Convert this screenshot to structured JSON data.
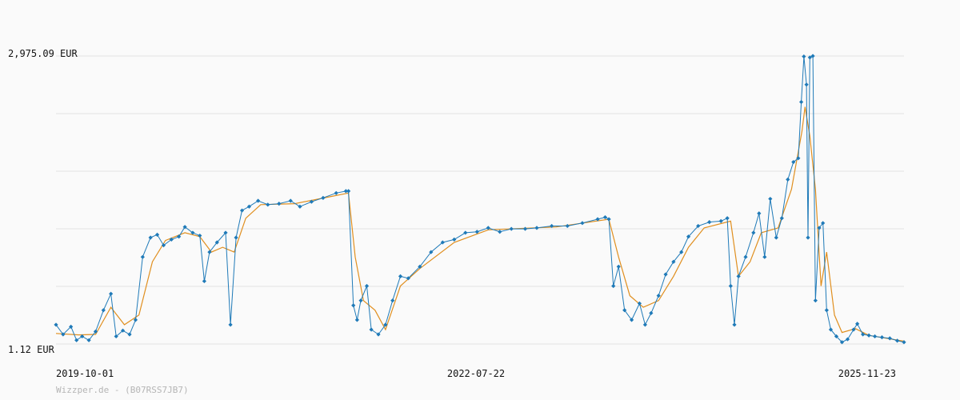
{
  "chart_data": {
    "type": "line",
    "y_unit": "EUR",
    "y_labels": [
      "2,975.09 EUR",
      "1.12 EUR"
    ],
    "ylim": [
      1.12,
      2975.09
    ],
    "x_tick_labels": [
      "2019-10-01",
      "2022-07-22",
      "2025-11-23"
    ],
    "xlim": [
      "2019-10-01",
      "2025-12-18"
    ],
    "grid": true,
    "source": "Wizzper.de - (B07RSS7JB7)",
    "colors": {
      "price": "#1f7ab8",
      "average": "#e08f1f",
      "grid": "#e3e3e3"
    },
    "series": [
      {
        "style": "line-with-diamond-markers",
        "points": [
          [
            "2019-10-01",
            200
          ],
          [
            "2019-10-20",
            100
          ],
          [
            "2019-11-10",
            180
          ],
          [
            "2019-11-25",
            40
          ],
          [
            "2019-12-10",
            80
          ],
          [
            "2019-12-28",
            40
          ],
          [
            "2020-01-15",
            130
          ],
          [
            "2020-02-05",
            350
          ],
          [
            "2020-02-25",
            520
          ],
          [
            "2020-03-10",
            80
          ],
          [
            "2020-03-28",
            140
          ],
          [
            "2020-04-15",
            100
          ],
          [
            "2020-05-01",
            250
          ],
          [
            "2020-05-20",
            900
          ],
          [
            "2020-06-10",
            1100
          ],
          [
            "2020-06-28",
            1130
          ],
          [
            "2020-07-15",
            1020
          ],
          [
            "2020-08-05",
            1080
          ],
          [
            "2020-08-25",
            1110
          ],
          [
            "2020-09-10",
            1210
          ],
          [
            "2020-10-01",
            1150
          ],
          [
            "2020-10-20",
            1120
          ],
          [
            "2020-11-01",
            650
          ],
          [
            "2020-11-15",
            950
          ],
          [
            "2020-12-05",
            1050
          ],
          [
            "2020-12-28",
            1150
          ],
          [
            "2021-01-10",
            200
          ],
          [
            "2021-01-25",
            1100
          ],
          [
            "2021-02-10",
            1380
          ],
          [
            "2021-03-01",
            1420
          ],
          [
            "2021-03-25",
            1480
          ],
          [
            "2021-04-20",
            1440
          ],
          [
            "2021-05-20",
            1450
          ],
          [
            "2021-06-20",
            1480
          ],
          [
            "2021-07-15",
            1420
          ],
          [
            "2021-08-15",
            1470
          ],
          [
            "2021-09-15",
            1510
          ],
          [
            "2021-10-20",
            1560
          ],
          [
            "2021-11-15",
            1580
          ],
          [
            "2021-11-22",
            1580
          ],
          [
            "2021-12-05",
            400
          ],
          [
            "2021-12-15",
            250
          ],
          [
            "2021-12-25",
            450
          ],
          [
            "2022-01-10",
            600
          ],
          [
            "2022-01-22",
            150
          ],
          [
            "2022-02-10",
            100
          ],
          [
            "2022-03-01",
            200
          ],
          [
            "2022-03-20",
            450
          ],
          [
            "2022-04-10",
            700
          ],
          [
            "2022-05-01",
            680
          ],
          [
            "2022-06-01",
            800
          ],
          [
            "2022-07-01",
            950
          ],
          [
            "2022-08-01",
            1050
          ],
          [
            "2022-09-01",
            1080
          ],
          [
            "2022-10-01",
            1150
          ],
          [
            "2022-11-01",
            1160
          ],
          [
            "2022-12-01",
            1200
          ],
          [
            "2023-01-01",
            1160
          ],
          [
            "2023-02-01",
            1190
          ],
          [
            "2023-03-10",
            1190
          ],
          [
            "2023-04-10",
            1200
          ],
          [
            "2023-05-20",
            1220
          ],
          [
            "2023-07-01",
            1220
          ],
          [
            "2023-08-10",
            1250
          ],
          [
            "2023-09-20",
            1290
          ],
          [
            "2023-10-10",
            1310
          ],
          [
            "2023-10-20",
            1290
          ],
          [
            "2023-11-01",
            600
          ],
          [
            "2023-11-15",
            800
          ],
          [
            "2023-12-01",
            350
          ],
          [
            "2023-12-20",
            250
          ],
          [
            "2024-01-10",
            420
          ],
          [
            "2024-01-25",
            200
          ],
          [
            "2024-02-10",
            320
          ],
          [
            "2024-03-01",
            500
          ],
          [
            "2024-03-20",
            720
          ],
          [
            "2024-04-10",
            850
          ],
          [
            "2024-05-01",
            950
          ],
          [
            "2024-05-20",
            1110
          ],
          [
            "2024-06-15",
            1220
          ],
          [
            "2024-07-15",
            1260
          ],
          [
            "2024-08-15",
            1270
          ],
          [
            "2024-09-01",
            1300
          ],
          [
            "2024-09-10",
            600
          ],
          [
            "2024-09-20",
            200
          ],
          [
            "2024-10-01",
            700
          ],
          [
            "2024-10-20",
            900
          ],
          [
            "2024-11-10",
            1150
          ],
          [
            "2024-11-25",
            1350
          ],
          [
            "2024-12-10",
            900
          ],
          [
            "2024-12-25",
            1500
          ],
          [
            "2025-01-10",
            1100
          ],
          [
            "2025-01-25",
            1300
          ],
          [
            "2025-02-10",
            1700
          ],
          [
            "2025-02-25",
            1880
          ],
          [
            "2025-03-10",
            1920
          ],
          [
            "2025-03-18",
            2500
          ],
          [
            "2025-03-25",
            2970
          ],
          [
            "2025-04-01",
            2680
          ],
          [
            "2025-04-05",
            1100
          ],
          [
            "2025-04-10",
            2960
          ],
          [
            "2025-04-18",
            2975
          ],
          [
            "2025-04-25",
            450
          ],
          [
            "2025-05-05",
            1200
          ],
          [
            "2025-05-15",
            1250
          ],
          [
            "2025-05-25",
            350
          ],
          [
            "2025-06-05",
            150
          ],
          [
            "2025-06-20",
            80
          ],
          [
            "2025-07-05",
            20
          ],
          [
            "2025-07-20",
            50
          ],
          [
            "2025-08-05",
            150
          ],
          [
            "2025-08-15",
            210
          ],
          [
            "2025-08-30",
            100
          ],
          [
            "2025-09-15",
            90
          ],
          [
            "2025-10-01",
            80
          ],
          [
            "2025-10-20",
            70
          ],
          [
            "2025-11-10",
            60
          ],
          [
            "2025-11-30",
            35
          ],
          [
            "2025-12-18",
            20
          ]
        ]
      },
      {
        "style": "line",
        "points": [
          [
            "2019-10-01",
            110
          ],
          [
            "2019-12-01",
            95
          ],
          [
            "2020-01-15",
            100
          ],
          [
            "2020-02-25",
            380
          ],
          [
            "2020-04-01",
            200
          ],
          [
            "2020-05-10",
            300
          ],
          [
            "2020-06-15",
            850
          ],
          [
            "2020-07-20",
            1070
          ],
          [
            "2020-09-10",
            1150
          ],
          [
            "2020-10-20",
            1110
          ],
          [
            "2020-11-20",
            950
          ],
          [
            "2020-12-20",
            1000
          ],
          [
            "2021-01-20",
            950
          ],
          [
            "2021-02-20",
            1300
          ],
          [
            "2021-04-01",
            1440
          ],
          [
            "2021-07-01",
            1450
          ],
          [
            "2021-10-01",
            1520
          ],
          [
            "2021-11-22",
            1560
          ],
          [
            "2021-12-10",
            900
          ],
          [
            "2022-01-01",
            450
          ],
          [
            "2022-02-01",
            350
          ],
          [
            "2022-03-01",
            150
          ],
          [
            "2022-04-10",
            600
          ],
          [
            "2022-06-01",
            780
          ],
          [
            "2022-09-01",
            1050
          ],
          [
            "2022-12-01",
            1180
          ],
          [
            "2023-06-01",
            1210
          ],
          [
            "2023-10-20",
            1290
          ],
          [
            "2023-11-15",
            900
          ],
          [
            "2023-12-15",
            500
          ],
          [
            "2024-01-20",
            380
          ],
          [
            "2024-03-01",
            450
          ],
          [
            "2024-04-10",
            700
          ],
          [
            "2024-05-20",
            1000
          ],
          [
            "2024-07-01",
            1200
          ],
          [
            "2024-09-10",
            1270
          ],
          [
            "2024-10-01",
            700
          ],
          [
            "2024-11-01",
            850
          ],
          [
            "2024-12-01",
            1150
          ],
          [
            "2025-01-15",
            1200
          ],
          [
            "2025-02-20",
            1600
          ],
          [
            "2025-03-20",
            2200
          ],
          [
            "2025-03-28",
            2450
          ],
          [
            "2025-04-10",
            2150
          ],
          [
            "2025-04-25",
            1600
          ],
          [
            "2025-05-10",
            600
          ],
          [
            "2025-05-25",
            950
          ],
          [
            "2025-06-15",
            300
          ],
          [
            "2025-07-05",
            120
          ],
          [
            "2025-08-10",
            160
          ],
          [
            "2025-09-15",
            90
          ],
          [
            "2025-12-18",
            30
          ]
        ]
      }
    ]
  }
}
